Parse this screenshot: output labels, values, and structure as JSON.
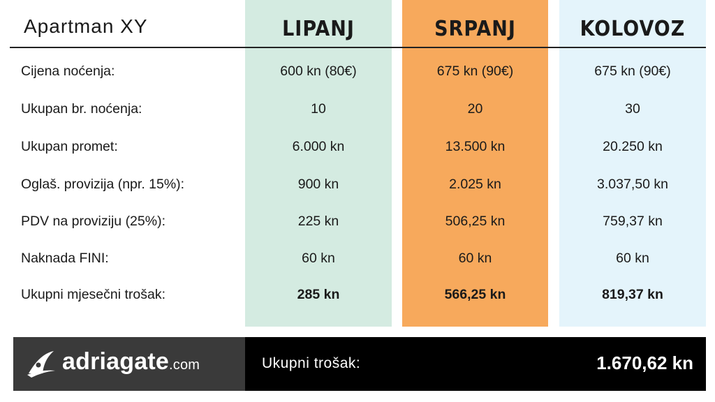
{
  "title": "Apartman XY",
  "columns": [
    "LIPANJ",
    "SRPANJ",
    "KOLOVOZ"
  ],
  "column_colors": [
    "#d4ebe1",
    "#f7a95c",
    "#e4f4fb"
  ],
  "rows": [
    {
      "label": "Cijena noćenja:",
      "values": [
        "600 kn (80€)",
        "675 kn (90€)",
        "675 kn (90€)"
      ]
    },
    {
      "label": "Ukupan br. noćenja:",
      "values": [
        "10",
        "20",
        "30"
      ]
    },
    {
      "label": "Ukupan promet:",
      "values": [
        "6.000 kn",
        "13.500 kn",
        "20.250 kn"
      ]
    },
    {
      "label": "Oglaš. provizija (npr. 15%):",
      "values": [
        "900 kn",
        "2.025 kn",
        "3.037,50 kn"
      ]
    },
    {
      "label": "PDV na proviziju (25%):",
      "values": [
        "225 kn",
        "506,25 kn",
        "759,37 kn"
      ]
    },
    {
      "label": "Naknada FINI:",
      "values": [
        "60 kn",
        "60 kn",
        "60 kn"
      ]
    },
    {
      "label": "Ukupni mjesečni trošak:",
      "values": [
        "285 kn",
        "566,25 kn",
        "819,37 kn"
      ]
    }
  ],
  "footer": {
    "logo_name": "adriagate",
    "logo_suffix": ".com",
    "logo_icon": "adriagate-sail-icon",
    "total_label": "Ukupni trošak:",
    "total_value": "1.670,62 kn"
  }
}
